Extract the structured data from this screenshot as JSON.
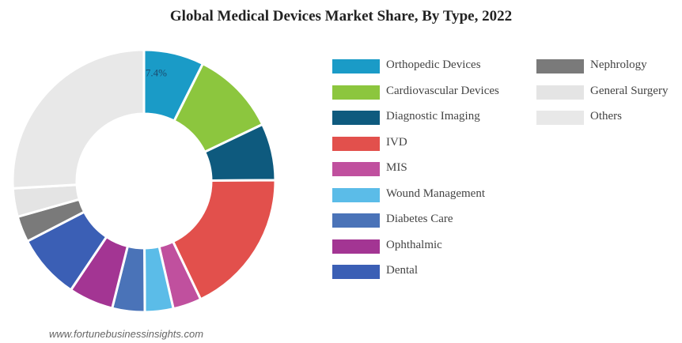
{
  "chart_data": {
    "type": "pie",
    "title": "Global Medical Devices Market Share, By Type, 2022",
    "data_labels": {
      "Orthopedic Devices": "7.4%"
    },
    "series": [
      {
        "name": "Orthopedic Devices",
        "value": 7.4,
        "color": "#1a9bc7"
      },
      {
        "name": "Cardiovascular Devices",
        "value": 10.5,
        "color": "#8cc63e"
      },
      {
        "name": "Diagnostic Imaging",
        "value": 7.0,
        "color": "#0e5a7e"
      },
      {
        "name": "IVD",
        "value": 18.0,
        "color": "#e2504c"
      },
      {
        "name": "MIS",
        "value": 3.5,
        "color": "#c0509e"
      },
      {
        "name": "Wound Management",
        "value": 3.5,
        "color": "#5bbce8"
      },
      {
        "name": "Diabetes Care",
        "value": 4.0,
        "color": "#4a73b8"
      },
      {
        "name": "Ophthalmic",
        "value": 5.5,
        "color": "#a33593"
      },
      {
        "name": "Dental",
        "value": 8.0,
        "color": "#3b5fb5"
      },
      {
        "name": "Nephrology",
        "value": 3.2,
        "color": "#7a7a7a"
      },
      {
        "name": "General Surgery",
        "value": 3.5,
        "color": "#e4e4e4"
      },
      {
        "name": "Others",
        "value": 25.9,
        "color": "#e8e8e8"
      }
    ],
    "legend_position": "right"
  },
  "legend": {
    "col1": [
      "Orthopedic Devices",
      "Cardiovascular Devices",
      "Diagnostic Imaging",
      "IVD",
      "MIS",
      "Wound Management",
      "Diabetes Care",
      "Ophthalmic",
      "Dental"
    ],
    "col2": [
      "Nephrology",
      "General Surgery",
      "Others"
    ]
  },
  "source": "www.fortunebusinessinsights.com"
}
